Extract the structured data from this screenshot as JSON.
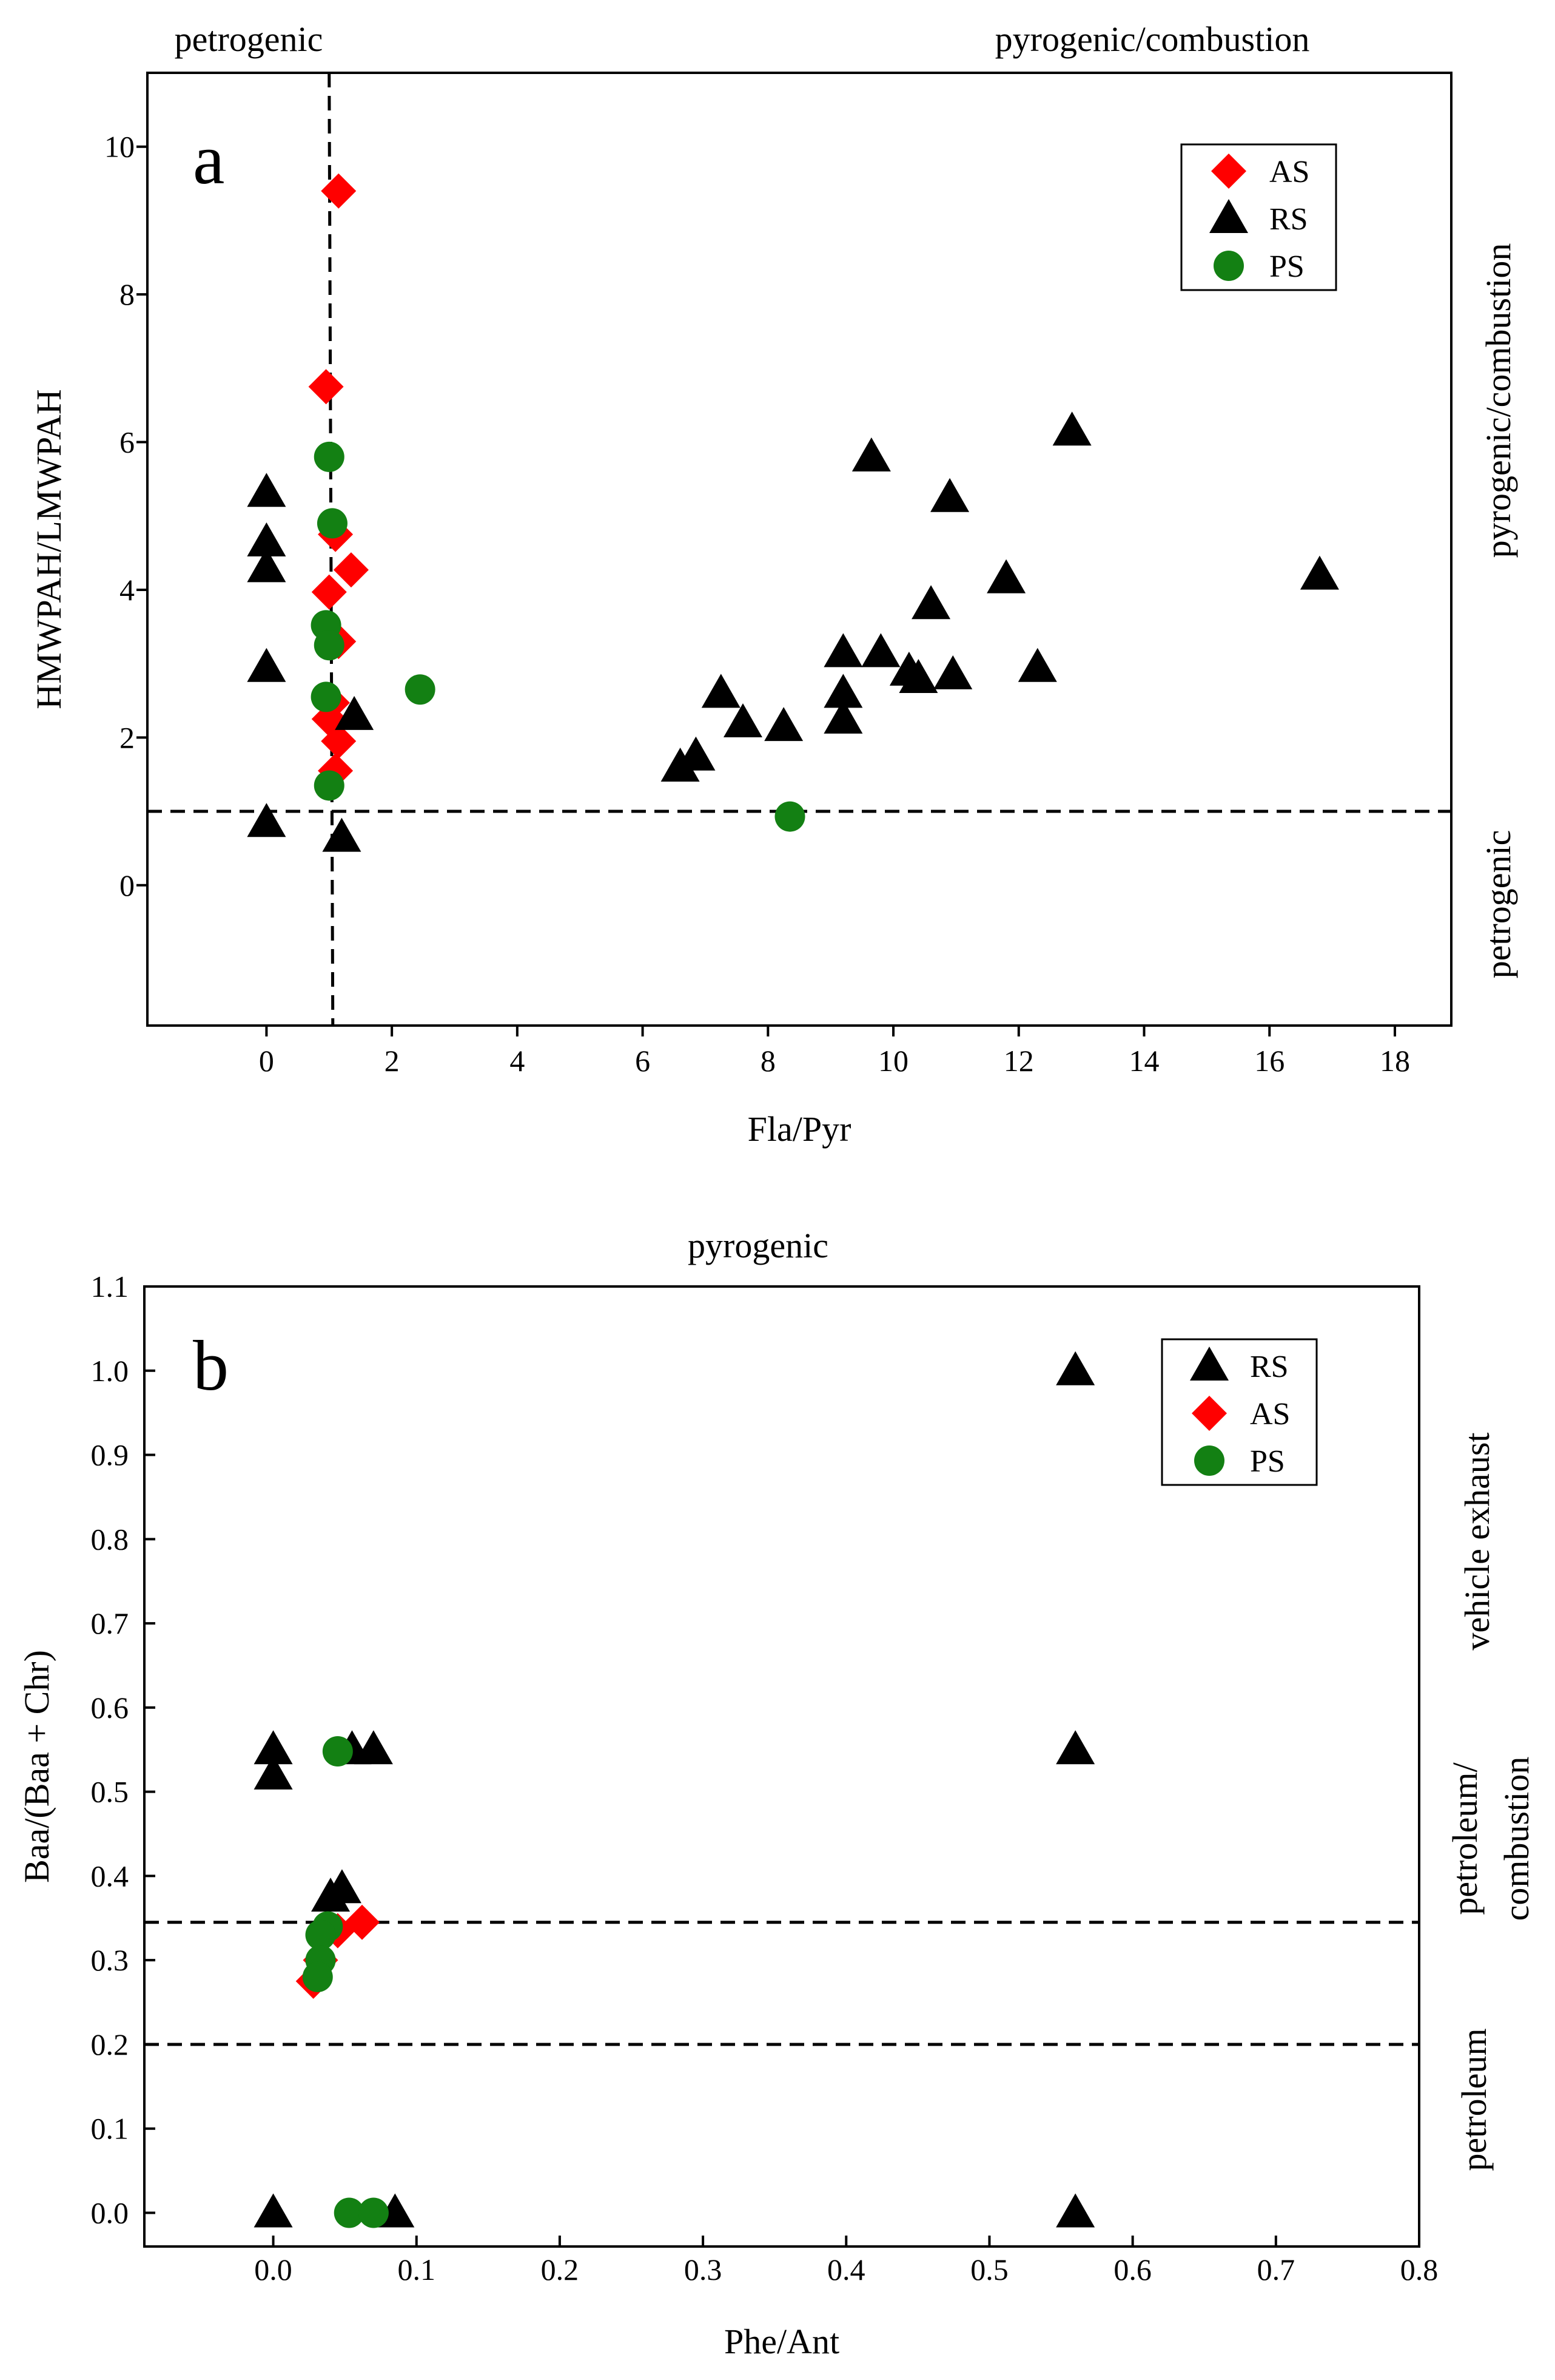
{
  "chart_data": [
    {
      "type": "scatter",
      "panel_label": "a",
      "xlabel": "Fla/Pyr",
      "ylabel": "HMWPAH/LMWPAH",
      "xlim": [
        -1.9,
        18.9
      ],
      "ylim": [
        -1.9,
        11.0
      ],
      "xticks": [
        0,
        2,
        4,
        6,
        8,
        10,
        12,
        14,
        16,
        18
      ],
      "yticks": [
        0,
        2,
        4,
        6,
        8,
        10
      ],
      "tick_labels_x": [
        "0",
        "2",
        "4",
        "6",
        "8",
        "10",
        "12",
        "14",
        "16",
        "18"
      ],
      "tick_labels_y": [
        "0",
        "2",
        "4",
        "6",
        "8",
        "10"
      ],
      "threshold_x": 1.0,
      "threshold_y": 1.0,
      "region_labels": {
        "top_left": "petrogenic",
        "top_right": "pyrogenic/combustion",
        "right_upper": "pyrogenic/combustion",
        "right_lower": "petrogenic"
      },
      "legend_position": "top-right",
      "legend": [
        "AS",
        "RS",
        "PS"
      ],
      "series": [
        {
          "name": "AS",
          "marker": "diamond",
          "color": "#ff0000",
          "points": [
            [
              1.15,
              9.4
            ],
            [
              0.95,
              6.75
            ],
            [
              1.1,
              4.75
            ],
            [
              1.35,
              4.27
            ],
            [
              1.0,
              3.97
            ],
            [
              1.15,
              3.3
            ],
            [
              1.05,
              2.47
            ],
            [
              1.0,
              2.25
            ],
            [
              1.15,
              1.95
            ],
            [
              1.1,
              1.55
            ]
          ]
        },
        {
          "name": "RS",
          "marker": "triangle",
          "color": "#000000",
          "points": [
            [
              0.0,
              5.32
            ],
            [
              0.0,
              4.65
            ],
            [
              0.0,
              4.3
            ],
            [
              0.0,
              2.95
            ],
            [
              0.0,
              0.85
            ],
            [
              1.2,
              0.65
            ],
            [
              1.4,
              2.3
            ],
            [
              6.6,
              1.6
            ],
            [
              6.85,
              1.75
            ],
            [
              7.25,
              2.6
            ],
            [
              7.6,
              2.2
            ],
            [
              8.25,
              2.15
            ],
            [
              9.2,
              3.15
            ],
            [
              9.2,
              2.6
            ],
            [
              9.2,
              2.25
            ],
            [
              9.65,
              5.8
            ],
            [
              9.8,
              3.15
            ],
            [
              10.25,
              2.9
            ],
            [
              10.4,
              2.8
            ],
            [
              10.6,
              3.8
            ],
            [
              10.9,
              5.25
            ],
            [
              10.95,
              2.85
            ],
            [
              11.8,
              4.15
            ],
            [
              12.3,
              2.95
            ],
            [
              12.85,
              6.15
            ],
            [
              16.8,
              4.2
            ]
          ]
        },
        {
          "name": "PS",
          "marker": "circle",
          "color": "#138013",
          "points": [
            [
              1.0,
              5.8
            ],
            [
              1.05,
              4.9
            ],
            [
              0.95,
              3.52
            ],
            [
              1.0,
              3.25
            ],
            [
              0.95,
              2.55
            ],
            [
              1.0,
              1.35
            ],
            [
              2.45,
              2.65
            ],
            [
              8.35,
              0.93
            ]
          ]
        }
      ]
    },
    {
      "type": "scatter",
      "panel_label": "b",
      "xlabel": "Phe/Ant",
      "ylabel": "Baa/(Baa + Chr)",
      "xlim": [
        -0.09,
        0.8
      ],
      "ylim": [
        -0.04,
        1.1
      ],
      "xticks": [
        0.0,
        0.1,
        0.2,
        0.3,
        0.4,
        0.5,
        0.6,
        0.7,
        0.8
      ],
      "yticks": [
        0.0,
        0.1,
        0.2,
        0.3,
        0.4,
        0.5,
        0.6,
        0.7,
        0.8,
        0.9,
        1.0,
        1.1
      ],
      "tick_labels_x": [
        "0.0",
        "0.1",
        "0.2",
        "0.3",
        "0.4",
        "0.5",
        "0.6",
        "0.7",
        "0.8"
      ],
      "tick_labels_y": [
        "0.0",
        "0.1",
        "0.2",
        "0.3",
        "0.4",
        "0.5",
        "0.6",
        "0.7",
        "0.8",
        "0.9",
        "1.0",
        "1.1"
      ],
      "threshold_y": [
        0.345,
        0.2
      ],
      "region_labels": {
        "top": "pyrogenic",
        "right_top": "vehicle exhaust",
        "right_middle_line1": "petroleum/",
        "right_middle_line2": "combustion",
        "right_bottom": "petroleum"
      },
      "legend_position": "top-right",
      "legend": [
        "RS",
        "AS",
        "PS"
      ],
      "series": [
        {
          "name": "RS",
          "marker": "triangle",
          "color": "#000000",
          "points": [
            [
              0.0,
              0.55
            ],
            [
              0.0,
              0.52
            ],
            [
              0.055,
              0.55
            ],
            [
              0.07,
              0.55
            ],
            [
              0.04,
              0.375
            ],
            [
              0.048,
              0.385
            ],
            [
              0.0,
              0.0
            ],
            [
              0.085,
              0.0
            ],
            [
              0.56,
              1.0
            ],
            [
              0.56,
              0.55
            ],
            [
              0.56,
              0.0
            ]
          ]
        },
        {
          "name": "AS",
          "marker": "diamond",
          "color": "#ff0000",
          "points": [
            [
              0.028,
              0.275
            ],
            [
              0.033,
              0.3
            ],
            [
              0.045,
              0.335
            ],
            [
              0.062,
              0.345
            ]
          ]
        },
        {
          "name": "PS",
          "marker": "circle",
          "color": "#138013",
          "points": [
            [
              0.045,
              0.548
            ],
            [
              0.038,
              0.34
            ],
            [
              0.033,
              0.33
            ],
            [
              0.033,
              0.3
            ],
            [
              0.031,
              0.28
            ],
            [
              0.053,
              0.0
            ],
            [
              0.07,
              0.0
            ]
          ]
        }
      ]
    }
  ]
}
